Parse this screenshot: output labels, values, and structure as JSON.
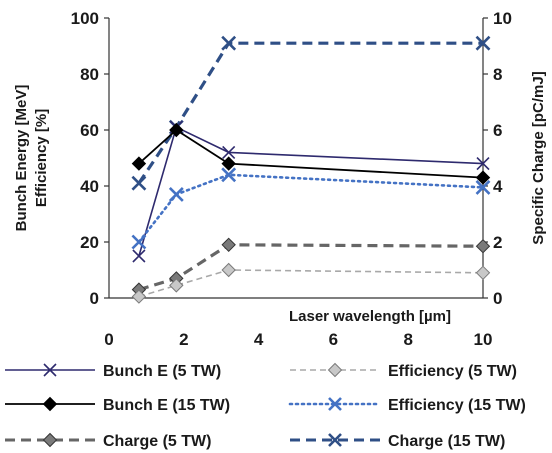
{
  "chart_data": {
    "type": "line",
    "xlabel": "Laser wavelength [µm]",
    "ylabel_lines": [
      "Bunch Energy [MeV]",
      "Efficiency [%]"
    ],
    "y2label": "Specific Charge [pC/mJ]",
    "xlim": [
      0,
      10
    ],
    "ylim": [
      0,
      100
    ],
    "y2lim": [
      0,
      10
    ],
    "x_ticks": [
      0,
      2,
      4,
      6,
      8,
      10
    ],
    "y_ticks": [
      0,
      20,
      40,
      60,
      80,
      100
    ],
    "y2_ticks": [
      0,
      2,
      4,
      6,
      8,
      10
    ],
    "grid": false,
    "legend_position": "bottom",
    "series": [
      {
        "name": "Bunch E (5 TW)",
        "axis": "left",
        "color": "#2e2a6e",
        "dash": "solid",
        "marker": "x",
        "width": 1.6,
        "x": [
          0.8,
          1.8,
          3.2,
          10
        ],
        "y": [
          15,
          61,
          52,
          48
        ]
      },
      {
        "name": "Efficiency (5 TW)",
        "axis": "left",
        "color": "#a8a8a8",
        "dash": "6,4",
        "marker": "diamond-light",
        "width": 1.6,
        "x": [
          0.8,
          1.8,
          3.2,
          10
        ],
        "y": [
          0.5,
          4.5,
          10,
          9
        ]
      },
      {
        "name": "Bunch E (15 TW)",
        "axis": "left",
        "color": "#000000",
        "dash": "solid",
        "marker": "diamond-black",
        "width": 1.8,
        "x": [
          0.8,
          1.8,
          3.2,
          10
        ],
        "y": [
          48,
          60,
          48,
          43
        ]
      },
      {
        "name": "Efficiency (15 TW)",
        "axis": "left",
        "color": "#4472c4",
        "dash": "2,4",
        "marker": "x-blue",
        "width": 2.6,
        "x": [
          0.8,
          1.8,
          3.2,
          10
        ],
        "y": [
          20,
          37,
          44,
          39.5
        ]
      },
      {
        "name": "Charge (5 TW)",
        "axis": "right",
        "color": "#666666",
        "dash": "10,6",
        "marker": "diamond-gray",
        "width": 3.2,
        "x": [
          0.8,
          1.8,
          3.2,
          10
        ],
        "y": [
          0.3,
          0.7,
          1.9,
          1.85
        ]
      },
      {
        "name": "Charge (15 TW)",
        "axis": "right",
        "color": "#2f4f86",
        "dash": "10,6",
        "marker": "x-dark",
        "width": 3.2,
        "x": [
          0.8,
          1.8,
          3.2,
          10
        ],
        "y": [
          4.1,
          6.1,
          9.1,
          9.1
        ]
      }
    ]
  }
}
